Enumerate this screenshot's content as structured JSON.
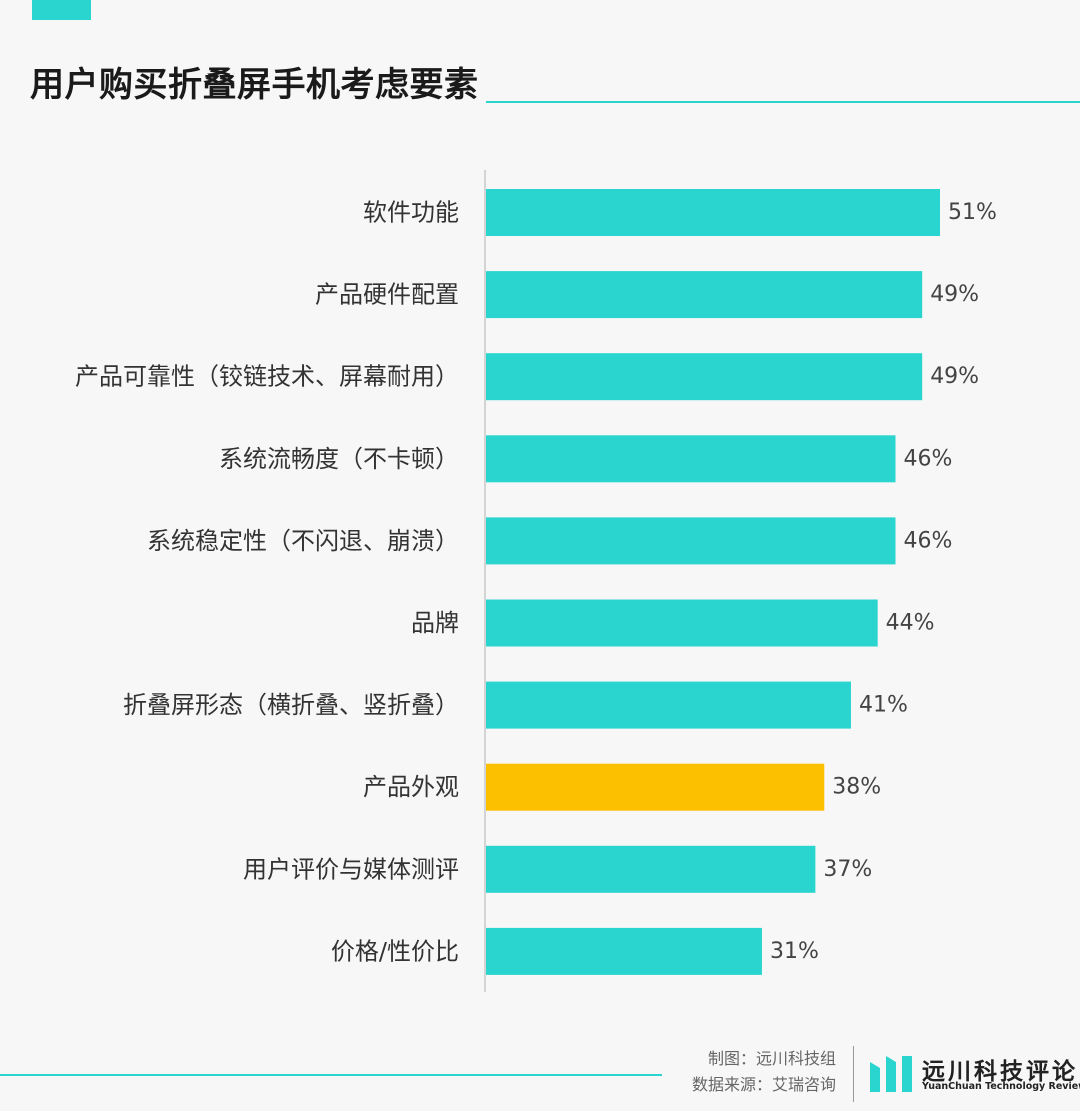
{
  "title": "用户购买折叠屏手机考虑要素",
  "colors": {
    "accent": "#2bd5cf",
    "highlight": "#fcc000",
    "axis": "#d4d4d4"
  },
  "chart_data": {
    "type": "bar",
    "orientation": "horizontal",
    "title": "用户购买折叠屏手机考虑要素",
    "xlabel": "",
    "ylabel": "",
    "categories": [
      "软件功能",
      "产品硬件配置",
      "产品可靠性（铰链技术、屏幕耐用）",
      "系统流畅度（不卡顿）",
      "系统稳定性（不闪退、崩溃）",
      "品牌",
      "折叠屏形态（横折叠、竖折叠）",
      "产品外观",
      "用户评价与媒体测评",
      "价格/性价比"
    ],
    "values": [
      51,
      49,
      49,
      46,
      46,
      44,
      41,
      38,
      37,
      31
    ],
    "value_labels": [
      "51%",
      "49%",
      "49%",
      "46%",
      "46%",
      "44%",
      "41%",
      "38%",
      "37%",
      "31%"
    ],
    "highlight_index": 7,
    "grid": false,
    "legend": "none"
  },
  "footer": {
    "credit_maker": "制图：远川科技组",
    "credit_source": "数据来源：艾瑞咨询"
  },
  "logo": {
    "name_cn": "远川科技评论",
    "name_en": "YuanChuan Technology Review"
  }
}
